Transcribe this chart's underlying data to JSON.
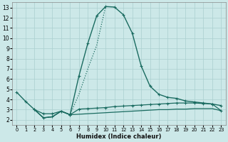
{
  "xlabel": "Humidex (Indice chaleur)",
  "bg_color": "#cce8e8",
  "grid_color": "#aacfcf",
  "line_color": "#1a6b60",
  "xlim": [
    -0.5,
    23.5
  ],
  "ylim": [
    1.5,
    13.5
  ],
  "xticks": [
    0,
    1,
    2,
    3,
    4,
    5,
    6,
    7,
    8,
    9,
    10,
    11,
    12,
    13,
    14,
    15,
    16,
    17,
    18,
    19,
    20,
    21,
    22,
    23
  ],
  "yticks": [
    2,
    3,
    4,
    5,
    6,
    7,
    8,
    9,
    10,
    11,
    12,
    13
  ],
  "series": [
    {
      "x": [
        0,
        1,
        2,
        3,
        4,
        5,
        6,
        7,
        8,
        9,
        10,
        11,
        12,
        13,
        14,
        15,
        16,
        17,
        18,
        19,
        20,
        21,
        22,
        23
      ],
      "y": [
        4.7,
        3.8,
        3.0,
        2.2,
        2.3,
        2.85,
        2.5,
        6.3,
        9.5,
        12.2,
        13.1,
        13.05,
        12.3,
        10.5,
        7.3,
        5.3,
        4.5,
        4.2,
        4.1,
        3.85,
        3.75,
        3.65,
        3.55,
        3.4
      ],
      "style": "solid",
      "marker": true,
      "lw": 1.0
    },
    {
      "x": [
        2,
        3,
        4,
        5,
        6,
        7,
        8,
        9,
        10
      ],
      "y": [
        3.0,
        2.2,
        2.3,
        2.85,
        2.5,
        4.5,
        7.0,
        9.3,
        13.1
      ],
      "style": "dotted",
      "marker": false,
      "lw": 0.9
    },
    {
      "x": [
        2,
        3,
        4,
        5,
        6,
        7,
        8,
        9,
        10,
        11,
        12,
        13,
        14,
        15,
        16,
        17,
        18,
        19,
        20,
        21,
        22,
        23
      ],
      "y": [
        3.0,
        2.6,
        2.6,
        2.85,
        2.5,
        3.05,
        3.1,
        3.15,
        3.2,
        3.3,
        3.35,
        3.4,
        3.45,
        3.5,
        3.55,
        3.6,
        3.65,
        3.65,
        3.65,
        3.6,
        3.55,
        2.9
      ],
      "style": "solid",
      "marker": true,
      "lw": 0.9
    },
    {
      "x": [
        2,
        3,
        4,
        5,
        6,
        7,
        8,
        9,
        10,
        11,
        12,
        13,
        14,
        15,
        16,
        17,
        18,
        19,
        20,
        21,
        22,
        23
      ],
      "y": [
        3.0,
        2.2,
        2.3,
        2.85,
        2.5,
        2.55,
        2.6,
        2.65,
        2.7,
        2.75,
        2.8,
        2.85,
        2.9,
        2.95,
        3.0,
        3.0,
        3.05,
        3.05,
        3.1,
        3.1,
        3.1,
        2.9
      ],
      "style": "solid",
      "marker": false,
      "lw": 0.9
    }
  ]
}
